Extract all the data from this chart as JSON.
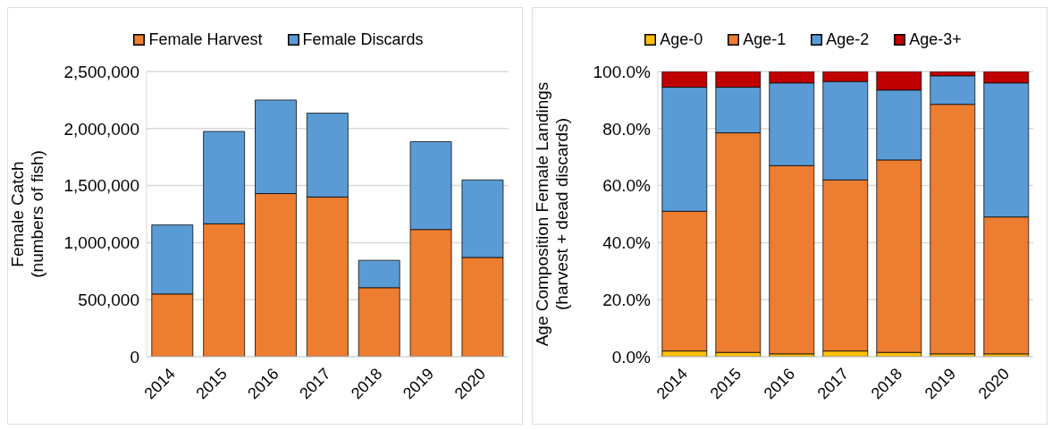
{
  "chart_data": [
    {
      "type": "bar",
      "stacked": true,
      "ylabel": "Female Catch\n(numbers of fish)",
      "categories": [
        "2014",
        "2015",
        "2016",
        "2017",
        "2018",
        "2019",
        "2020"
      ],
      "series": [
        {
          "name": "Female Harvest",
          "color": "#ed7d31",
          "values": [
            550000,
            1165000,
            1430000,
            1400000,
            605000,
            1115000,
            870000
          ]
        },
        {
          "name": "Female Discards",
          "color": "#5b9bd5",
          "values": [
            605000,
            810000,
            820000,
            735000,
            240000,
            770000,
            680000
          ]
        }
      ],
      "ylim": [
        0,
        2500000
      ],
      "yticks": [
        {
          "value": 0,
          "label": "0"
        },
        {
          "value": 500000,
          "label": "500,000"
        },
        {
          "value": 1000000,
          "label": "1,000,000"
        },
        {
          "value": 1500000,
          "label": "1,500,000"
        },
        {
          "value": 2000000,
          "label": "2,000,000"
        },
        {
          "value": 2500000,
          "label": "2,500,000"
        }
      ],
      "grid": "y",
      "legend": "top"
    },
    {
      "type": "bar",
      "stacked": true,
      "ylabel": "Age Composition Female Landings\n(harvest + dead discards)",
      "categories": [
        "2014",
        "2015",
        "2016",
        "2017",
        "2018",
        "2019",
        "2020"
      ],
      "series": [
        {
          "name": "Age-0",
          "color": "#ffc000",
          "values": [
            2,
            1.5,
            1,
            2,
            1.5,
            1,
            1
          ]
        },
        {
          "name": "Age-1",
          "color": "#ed7d31",
          "values": [
            49,
            77,
            66,
            60,
            67.5,
            87.5,
            48
          ]
        },
        {
          "name": "Age-2",
          "color": "#5b9bd5",
          "values": [
            43.5,
            16,
            29,
            34.5,
            24.5,
            10,
            47
          ]
        },
        {
          "name": "Age-3+",
          "color": "#c00000",
          "values": [
            5.5,
            5.5,
            4,
            3.5,
            6.5,
            1.5,
            4
          ]
        }
      ],
      "ylim": [
        0,
        100
      ],
      "yticks": [
        {
          "value": 0,
          "label": "0.0%"
        },
        {
          "value": 20,
          "label": "20.0%"
        },
        {
          "value": 40,
          "label": "40.0%"
        },
        {
          "value": 60,
          "label": "60.0%"
        },
        {
          "value": 80,
          "label": "80.0%"
        },
        {
          "value": 100,
          "label": "100.0%"
        }
      ],
      "grid": "y",
      "legend": "top"
    }
  ]
}
